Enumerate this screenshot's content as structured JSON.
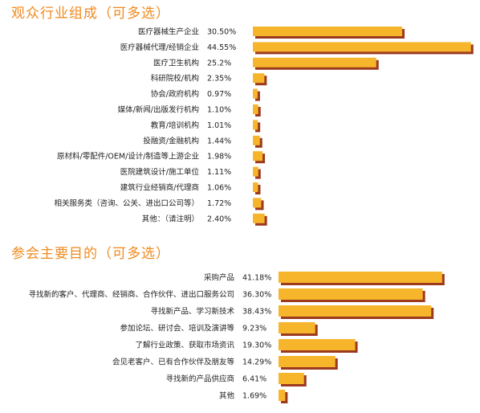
{
  "colors": {
    "title": "#f08a1e",
    "bar": "#f7b52c",
    "shadow": "#9b3a1f",
    "text": "#222222"
  },
  "chart_data": [
    {
      "type": "bar",
      "orientation": "horizontal",
      "title": "观众行业组成（可多选）",
      "categories": [
        "医疗器械生产企业",
        "医疗器械代理/经销企业",
        "医疗卫生机构",
        "科研院校/机构",
        "协会/政府机构",
        "媒体/新闻/出版发行机构",
        "教育/培训机构",
        "投融资/金融机构",
        "原材料/零配件/OEM/设计/制造等上游企业",
        "医院建筑设计/施工单位",
        "建筑行业经销商/代理商",
        "相关服务类（咨询、公关、进出口公司等）",
        "其他：（请注明）"
      ],
      "values": [
        30.5,
        44.55,
        25.2,
        2.35,
        0.97,
        1.1,
        1.01,
        1.44,
        1.98,
        1.11,
        1.06,
        1.72,
        2.4
      ],
      "value_labels": [
        "30.50%",
        "44.55%",
        "25.2%",
        "2.35%",
        "0.97%",
        "1.10%",
        "1.01%",
        "1.44%",
        "1.98%",
        "1.11%",
        "1.06%",
        "1.72%",
        "2.40%"
      ],
      "unit": "%",
      "grid": false,
      "legend": "none"
    },
    {
      "type": "bar",
      "orientation": "horizontal",
      "title": "参会主要目的（可多选）",
      "categories": [
        "采购产品",
        "寻找新的客户、代理商、经销商、合作伙伴、进出口服务公司",
        "寻找新产品、学习新技术",
        "参加论坛、研讨会、培训及演讲等",
        "了解行业政策、获取市场资讯",
        "会见老客户、已有合作伙伴及朋友等",
        "寻找新的产品供应商",
        "其他"
      ],
      "values": [
        41.18,
        36.3,
        38.43,
        9.23,
        19.3,
        14.29,
        6.41,
        1.69
      ],
      "value_labels": [
        "41.18%",
        "36.30%",
        "38.43%",
        "9.23%",
        "19.30%",
        "14.29%",
        "6.41%",
        "1.69%"
      ],
      "unit": "%",
      "grid": false,
      "legend": "none"
    }
  ]
}
